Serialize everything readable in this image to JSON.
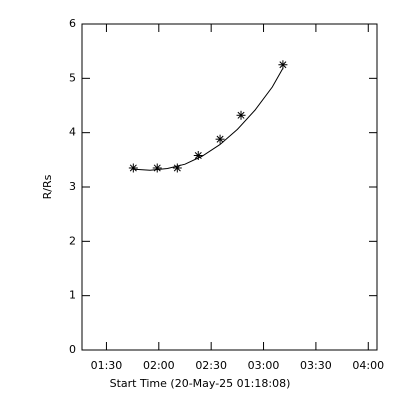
{
  "chart_data": {
    "type": "line",
    "x_label": "Start Time (20-May-25 01:18:08)",
    "y_label": "R/Rs",
    "xlim": [
      76,
      245
    ],
    "ylim": [
      0,
      6
    ],
    "xticks": [
      {
        "value": 90,
        "label": "01:30"
      },
      {
        "value": 120,
        "label": "02:00"
      },
      {
        "value": 150,
        "label": "02:30"
      },
      {
        "value": 180,
        "label": "03:00"
      },
      {
        "value": 210,
        "label": "03:30"
      },
      {
        "value": 240,
        "label": "04:00"
      }
    ],
    "yticks": [
      0,
      1,
      2,
      3,
      4,
      5,
      6
    ],
    "color": "#000000",
    "series": [
      {
        "marker": "asterisk",
        "x": [
          105.4,
          119.1,
          130.6,
          142.6,
          155.1,
          167.1,
          191.1
        ],
        "values": [
          3.35,
          3.35,
          3.35,
          3.58,
          3.88,
          4.32,
          5.25
        ]
      }
    ],
    "fit": {
      "x": [
        105,
        115,
        125,
        135,
        145,
        155,
        165,
        175,
        185,
        191
      ],
      "values": [
        3.33,
        3.31,
        3.34,
        3.42,
        3.57,
        3.78,
        4.06,
        4.41,
        4.84,
        5.18
      ]
    }
  }
}
